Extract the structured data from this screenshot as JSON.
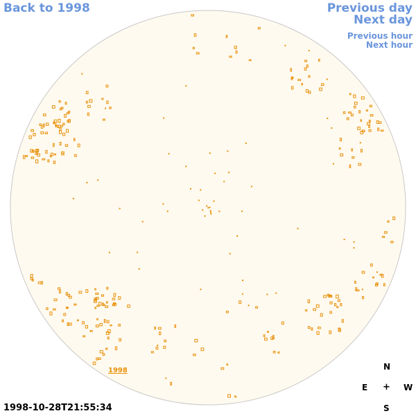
{
  "nav": {
    "back_label": "Back to 1998",
    "prev_day_label": "Previous day",
    "next_day_label": "Next day",
    "prev_hour_label": "Previous hour",
    "next_hour_label": "Next hour"
  },
  "disk": {
    "label": "1998",
    "fill_color": "#fffaef",
    "border_color": "#c8c8c8",
    "feature_color": "#e8900a"
  },
  "timestamp": "1998-10-28T21:55:34",
  "compass": {
    "north": "N",
    "east": "E",
    "center": "+",
    "west": "W",
    "south": "S"
  }
}
